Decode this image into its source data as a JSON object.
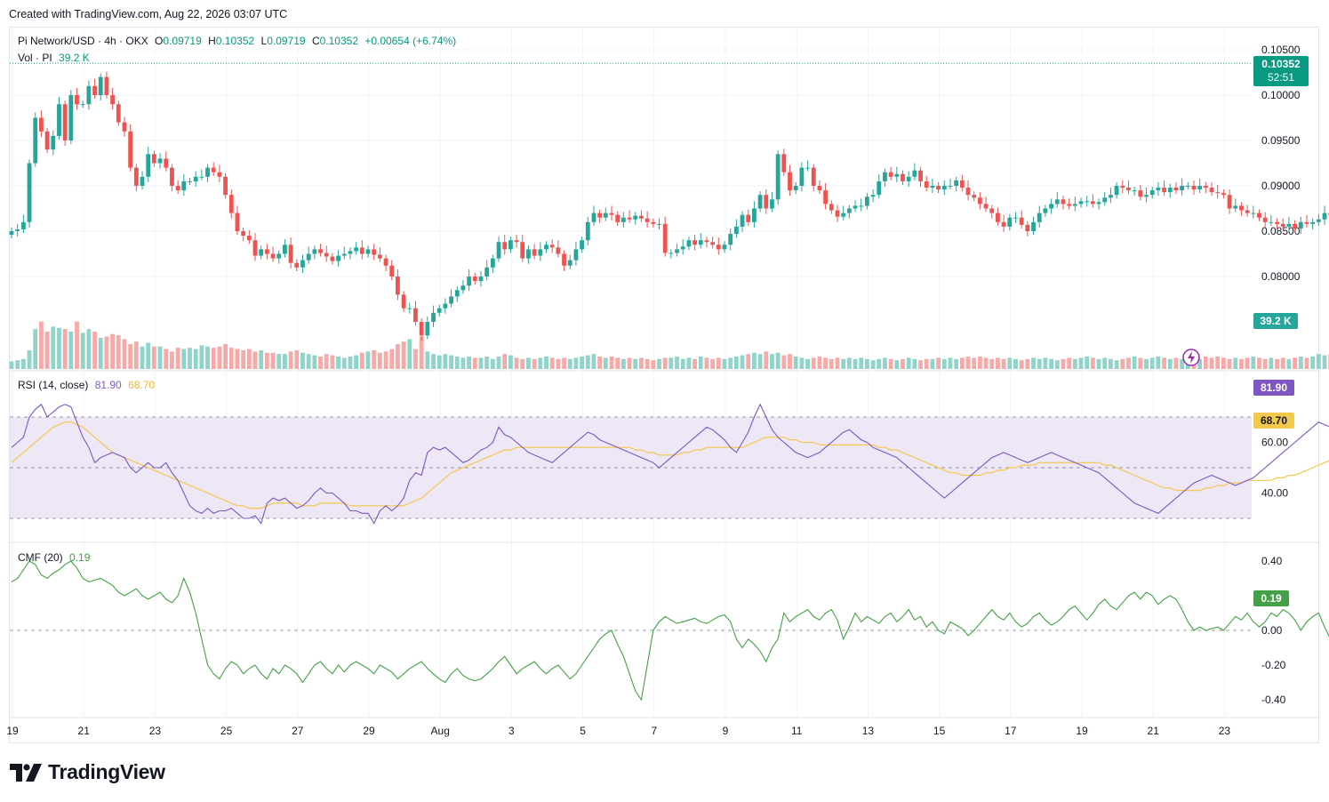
{
  "header": {
    "created": "Created with TradingView.com, Aug 22, 2026 03:07 UTC"
  },
  "legend": {
    "symbol": "Pi Network/USD · 4h · OKX",
    "o_label": "O",
    "o": "0.09719",
    "h_label": "H",
    "h": "0.10352",
    "l_label": "L",
    "l": "0.09719",
    "c_label": "C",
    "c": "0.10352",
    "change": "+0.00654 (+6.74%)",
    "vol_label": "Vol · PI",
    "vol": "39.2 K",
    "rsi_label": "RSI (14, close)",
    "rsi": "81.90",
    "rsi_ma": "68.70",
    "cmf_label": "CMF (20)",
    "cmf": "0.19"
  },
  "tags": {
    "price": "0.10352",
    "countdown": "52:51",
    "volume": "39.2 K",
    "rsi": "81.90",
    "rsi_ma": "68.70",
    "cmf": "0.19"
  },
  "brand": {
    "name": "TradingView"
  },
  "colors": {
    "up": "#26a69a",
    "down": "#ef5350",
    "vol_up": "#8fd3c9",
    "vol_down": "#f7a9a7",
    "rsi": "#7e57c2",
    "rsi_ma": "#f2c94c",
    "rsi_band": "#ede7f6",
    "cmf": "#43a047",
    "grid": "#f0f3fa",
    "text": "#131722"
  },
  "chart_data": [
    {
      "type": "candlestick",
      "title": "Pi Network/USD · 4h · OKX",
      "x_ticks": [
        "19",
        "21",
        "23",
        "25",
        "27",
        "29",
        "Aug",
        "3",
        "5",
        "7",
        "9",
        "11",
        "13",
        "15",
        "17",
        "19",
        "21",
        "23"
      ],
      "y_ticks": [
        "0.10500",
        "0.10000",
        "0.09500",
        "0.09000",
        "0.08500",
        "0.08000"
      ],
      "ylim": [
        0.0772,
        0.1055
      ],
      "bars_per_day": 6,
      "last": {
        "o": 0.09719,
        "h": 0.10352,
        "l": 0.09719,
        "c": 0.10352
      },
      "close": [
        0.085,
        0.0852,
        0.086,
        0.0925,
        0.0975,
        0.096,
        0.094,
        0.0955,
        0.099,
        0.095,
        0.1,
        0.099,
        0.099,
        0.101,
        0.1,
        0.102,
        0.1,
        0.099,
        0.097,
        0.096,
        0.092,
        0.09,
        0.091,
        0.0935,
        0.0925,
        0.093,
        0.092,
        0.09,
        0.0895,
        0.0905,
        0.0905,
        0.091,
        0.091,
        0.092,
        0.0915,
        0.091,
        0.089,
        0.087,
        0.085,
        0.0845,
        0.084,
        0.0823,
        0.083,
        0.0825,
        0.082,
        0.0825,
        0.0835,
        0.0815,
        0.081,
        0.0818,
        0.0825,
        0.083,
        0.0826,
        0.0822,
        0.0817,
        0.0823,
        0.0825,
        0.0828,
        0.0832,
        0.0825,
        0.083,
        0.0824,
        0.082,
        0.0812,
        0.08,
        0.078,
        0.0765,
        0.0765,
        0.075,
        0.0735,
        0.075,
        0.076,
        0.0765,
        0.077,
        0.0778,
        0.0785,
        0.079,
        0.08,
        0.0795,
        0.08,
        0.081,
        0.082,
        0.0838,
        0.083,
        0.084,
        0.0838,
        0.082,
        0.083,
        0.0823,
        0.083,
        0.0835,
        0.0832,
        0.0825,
        0.0812,
        0.0818,
        0.083,
        0.084,
        0.086,
        0.087,
        0.0865,
        0.087,
        0.0868,
        0.086,
        0.0865,
        0.0863,
        0.0867,
        0.0864,
        0.086,
        0.0858,
        0.0858,
        0.0826,
        0.0826,
        0.083,
        0.0833,
        0.084,
        0.0835,
        0.084,
        0.0838,
        0.0835,
        0.083,
        0.0835,
        0.0847,
        0.0855,
        0.0868,
        0.086,
        0.0875,
        0.089,
        0.0875,
        0.0885,
        0.0935,
        0.0915,
        0.0895,
        0.09,
        0.092,
        0.092,
        0.09,
        0.0895,
        0.088,
        0.0873,
        0.0866,
        0.087,
        0.0875,
        0.0878,
        0.0878,
        0.0888,
        0.089,
        0.0905,
        0.0915,
        0.091,
        0.0913,
        0.0905,
        0.091,
        0.0917,
        0.0905,
        0.0898,
        0.09,
        0.0896,
        0.09,
        0.09,
        0.0906,
        0.0898,
        0.089,
        0.0887,
        0.088,
        0.0875,
        0.087,
        0.086,
        0.0855,
        0.0865,
        0.0865,
        0.0857,
        0.085,
        0.086,
        0.087,
        0.0875,
        0.088,
        0.0885,
        0.088,
        0.0878,
        0.088,
        0.0883,
        0.0883,
        0.088,
        0.0882,
        0.0887,
        0.089,
        0.09,
        0.0898,
        0.0895,
        0.0895,
        0.0888,
        0.089,
        0.0895,
        0.0898,
        0.0893,
        0.0898,
        0.0895,
        0.09,
        0.09,
        0.0896,
        0.09,
        0.0898,
        0.0893,
        0.0892,
        0.089,
        0.0875,
        0.0878,
        0.0873,
        0.087,
        0.087,
        0.0865,
        0.086,
        0.086,
        0.0858,
        0.0855,
        0.0858,
        0.0853,
        0.086,
        0.0858,
        0.086,
        0.0863,
        0.087,
        0.0868,
        0.087,
        0.0865,
        0.0868,
        0.0863,
        0.0865,
        0.0868,
        0.087,
        0.0873,
        0.0866,
        0.0867,
        0.0866,
        0.0864,
        0.0863,
        0.086,
        0.0865,
        0.0868,
        0.088,
        0.0885,
        0.09,
        0.089,
        0.088,
        0.089,
        0.09,
        0.0895,
        0.0905,
        0.091,
        0.0905,
        0.091,
        0.0918,
        0.0922,
        0.093,
        0.094,
        0.095,
        0.0948,
        0.093,
        0.0945,
        0.0972,
        0.1035
      ]
    },
    {
      "type": "bar",
      "name": "Vol · PI",
      "last": "39.2 K",
      "values": [
        6,
        7,
        8,
        15,
        32,
        38,
        30,
        34,
        33,
        32,
        30,
        38,
        29,
        32,
        30,
        25,
        26,
        28,
        27,
        24,
        20,
        22,
        18,
        21,
        18,
        18,
        16,
        14,
        17,
        16,
        17,
        16,
        19,
        18,
        17,
        18,
        20,
        17,
        16,
        15,
        16,
        14,
        15,
        13,
        13,
        12,
        12,
        14,
        15,
        13,
        12,
        11,
        10,
        12,
        11,
        10,
        9,
        10,
        11,
        13,
        14,
        15,
        13,
        14,
        16,
        20,
        22,
        24,
        16,
        26,
        14,
        12,
        11,
        12,
        11,
        10,
        9,
        10,
        9,
        9,
        10,
        8,
        10,
        12,
        11,
        9,
        8,
        9,
        8,
        9,
        10,
        9,
        8,
        9,
        8,
        9,
        10,
        11,
        12,
        10,
        9,
        10,
        9,
        8,
        9,
        8,
        9,
        8,
        7,
        8,
        9,
        9,
        10,
        8,
        9,
        8,
        10,
        9,
        8,
        9,
        8,
        9,
        10,
        11,
        12,
        13,
        12,
        14,
        12,
        13,
        11,
        12,
        10,
        9,
        8,
        9,
        10,
        9,
        8,
        9,
        8,
        9,
        8,
        9,
        8,
        7,
        8,
        9,
        8,
        7,
        8,
        9,
        8,
        7,
        8,
        8,
        9,
        8,
        9,
        8,
        9,
        10,
        9,
        10,
        9,
        8,
        9,
        8,
        9,
        8,
        7,
        8,
        9,
        8,
        9,
        8,
        7,
        8,
        9,
        8,
        9,
        10,
        9,
        8,
        9,
        8,
        7,
        8,
        9,
        10,
        9,
        8,
        9,
        10,
        9,
        8,
        9,
        8,
        10,
        9,
        8,
        10,
        9,
        10,
        9,
        8,
        9,
        8,
        9,
        10,
        9,
        8,
        9,
        8,
        9,
        8,
        9,
        10,
        9,
        10,
        12,
        11,
        12,
        11,
        10,
        9,
        10,
        9,
        10,
        11,
        12,
        11,
        10,
        9,
        10,
        11,
        10,
        11,
        12,
        13,
        15,
        16,
        18,
        17,
        16,
        15,
        17,
        18,
        20,
        18,
        22,
        24,
        26,
        25,
        24,
        30,
        39.2
      ]
    },
    {
      "type": "line",
      "name": "RSI (14, close)",
      "ylim": [
        15,
        93
      ],
      "y_ticks": [
        "60.00",
        "40.00"
      ],
      "bands": [
        30,
        50,
        70
      ],
      "last": 81.9,
      "ma_last": 68.7,
      "values": [
        58,
        60,
        62,
        70,
        73,
        75,
        70,
        72,
        74,
        75,
        74,
        68,
        62,
        58,
        52,
        54,
        55,
        56,
        55,
        54,
        50,
        48,
        50,
        52,
        50,
        50,
        52,
        48,
        45,
        40,
        35,
        33,
        32,
        34,
        32,
        33,
        33,
        34,
        32,
        30,
        30,
        31,
        28,
        36,
        38,
        37,
        38,
        36,
        34,
        35,
        37,
        40,
        42,
        40,
        40,
        38,
        36,
        33,
        33,
        32,
        32,
        28,
        33,
        35,
        33,
        35,
        38,
        45,
        48,
        47,
        56,
        58,
        57,
        58,
        56,
        54,
        52,
        53,
        55,
        57,
        58,
        60,
        66,
        63,
        62,
        60,
        58,
        56,
        55,
        54,
        53,
        52,
        54,
        56,
        58,
        60,
        62,
        64,
        63,
        61,
        60,
        59,
        58,
        57,
        56,
        55,
        54,
        53,
        52,
        50,
        52,
        54,
        56,
        58,
        60,
        62,
        64,
        66,
        65,
        63,
        61,
        58,
        56,
        60,
        64,
        70,
        75,
        70,
        65,
        62,
        60,
        58,
        56,
        55,
        54,
        55,
        56,
        58,
        60,
        62,
        64,
        65,
        63,
        61,
        60,
        58,
        57,
        56,
        55,
        54,
        52,
        50,
        48,
        46,
        44,
        42,
        40,
        38,
        40,
        42,
        44,
        46,
        48,
        50,
        52,
        54,
        55,
        56,
        55,
        54,
        53,
        52,
        53,
        54,
        55,
        56,
        55,
        54,
        53,
        52,
        51,
        50,
        49,
        48,
        46,
        44,
        42,
        40,
        38,
        36,
        35,
        34,
        33,
        32,
        34,
        36,
        38,
        40,
        42,
        44,
        45,
        46,
        47,
        46,
        45,
        44,
        43,
        44,
        45,
        46,
        48,
        50,
        52,
        54,
        56,
        58,
        60,
        62,
        64,
        66,
        68,
        67,
        66,
        65,
        66,
        68,
        70,
        72,
        74,
        76,
        75,
        74,
        73,
        72,
        74,
        76,
        78,
        80,
        78,
        76,
        75,
        74,
        76,
        78,
        77,
        76,
        74,
        76,
        78,
        80,
        82,
        81.9
      ],
      "ma_values": [
        52,
        54,
        56,
        58,
        60,
        62,
        64,
        66,
        67,
        68,
        68,
        67,
        66,
        64,
        62,
        60,
        58,
        56,
        55,
        54,
        53,
        52,
        51,
        50,
        49,
        48,
        47,
        46,
        45,
        44,
        43,
        42,
        41,
        40,
        39,
        38,
        37,
        36,
        35,
        35,
        34,
        34,
        34,
        35,
        36,
        36,
        36,
        36,
        36,
        35,
        35,
        35,
        36,
        36,
        36,
        36,
        36,
        35,
        35,
        35,
        35,
        35,
        35,
        35,
        35,
        35,
        35,
        36,
        37,
        38,
        40,
        42,
        44,
        46,
        48,
        49,
        50,
        51,
        52,
        53,
        54,
        55,
        56,
        57,
        57,
        58,
        58,
        58,
        58,
        58,
        58,
        58,
        58,
        58,
        58,
        58,
        58,
        58,
        58,
        58,
        58,
        58,
        58,
        58,
        58,
        57,
        57,
        56,
        56,
        55,
        55,
        55,
        55,
        56,
        56,
        57,
        57,
        58,
        58,
        58,
        58,
        58,
        58,
        58,
        59,
        60,
        61,
        62,
        62,
        62,
        62,
        61,
        61,
        60,
        60,
        60,
        59,
        59,
        59,
        59,
        59,
        59,
        59,
        59,
        59,
        59,
        58,
        58,
        57,
        57,
        56,
        55,
        54,
        53,
        52,
        51,
        50,
        49,
        48,
        48,
        47,
        47,
        47,
        47,
        48,
        48,
        49,
        49,
        50,
        50,
        51,
        51,
        51,
        52,
        52,
        52,
        52,
        52,
        52,
        52,
        52,
        52,
        52,
        52,
        51,
        51,
        50,
        49,
        48,
        47,
        46,
        45,
        44,
        43,
        42,
        42,
        41,
        41,
        41,
        41,
        41,
        42,
        42,
        43,
        43,
        44,
        44,
        44,
        45,
        45,
        45,
        45,
        45,
        46,
        46,
        47,
        47,
        48,
        49,
        50,
        51,
        52,
        53,
        54,
        55,
        56,
        57,
        58,
        59,
        60,
        61,
        62,
        63,
        63,
        64,
        64,
        65,
        65,
        66,
        66,
        67,
        67,
        67,
        68,
        68,
        68,
        68,
        68,
        68,
        68,
        68,
        68,
        68,
        68,
        68.7
      ]
    },
    {
      "type": "line",
      "name": "CMF (20)",
      "ylim": [
        -0.46,
        0.46
      ],
      "y_ticks": [
        "0.40",
        "0.00",
        "-0.20",
        "-0.40"
      ],
      "last": 0.19,
      "values": [
        0.28,
        0.3,
        0.35,
        0.4,
        0.38,
        0.32,
        0.3,
        0.33,
        0.35,
        0.38,
        0.4,
        0.36,
        0.3,
        0.28,
        0.29,
        0.3,
        0.28,
        0.26,
        0.22,
        0.2,
        0.22,
        0.24,
        0.2,
        0.18,
        0.2,
        0.22,
        0.18,
        0.16,
        0.2,
        0.3,
        0.22,
        0.1,
        -0.05,
        -0.2,
        -0.25,
        -0.28,
        -0.22,
        -0.18,
        -0.2,
        -0.25,
        -0.22,
        -0.2,
        -0.25,
        -0.28,
        -0.22,
        -0.25,
        -0.2,
        -0.22,
        -0.25,
        -0.3,
        -0.25,
        -0.2,
        -0.18,
        -0.22,
        -0.25,
        -0.2,
        -0.24,
        -0.2,
        -0.18,
        -0.2,
        -0.22,
        -0.25,
        -0.2,
        -0.22,
        -0.24,
        -0.28,
        -0.25,
        -0.22,
        -0.2,
        -0.18,
        -0.22,
        -0.25,
        -0.28,
        -0.3,
        -0.25,
        -0.22,
        -0.26,
        -0.28,
        -0.29,
        -0.28,
        -0.25,
        -0.22,
        -0.18,
        -0.15,
        -0.2,
        -0.25,
        -0.22,
        -0.2,
        -0.18,
        -0.22,
        -0.25,
        -0.22,
        -0.2,
        -0.24,
        -0.28,
        -0.25,
        -0.2,
        -0.15,
        -0.1,
        -0.05,
        -0.02,
        0.0,
        -0.08,
        -0.15,
        -0.25,
        -0.35,
        -0.4,
        -0.2,
        0.0,
        0.05,
        0.08,
        0.06,
        0.04,
        0.05,
        0.06,
        0.07,
        0.05,
        0.04,
        0.06,
        0.08,
        0.09,
        0.05,
        -0.05,
        -0.1,
        -0.05,
        -0.08,
        -0.12,
        -0.18,
        -0.1,
        -0.05,
        0.1,
        0.05,
        0.08,
        0.1,
        0.12,
        0.08,
        0.06,
        0.1,
        0.12,
        0.06,
        -0.05,
        0.02,
        0.1,
        0.05,
        0.08,
        0.06,
        0.04,
        0.08,
        0.1,
        0.05,
        0.08,
        0.12,
        0.06,
        0.08,
        0.02,
        0.05,
        0.0,
        -0.02,
        0.05,
        0.03,
        0.01,
        -0.03,
        0.0,
        0.04,
        0.08,
        0.12,
        0.08,
        0.06,
        0.1,
        0.05,
        0.02,
        0.04,
        0.08,
        0.1,
        0.06,
        0.03,
        0.05,
        0.08,
        0.12,
        0.14,
        0.1,
        0.06,
        0.1,
        0.15,
        0.18,
        0.14,
        0.12,
        0.16,
        0.2,
        0.22,
        0.18,
        0.22,
        0.2,
        0.15,
        0.18,
        0.2,
        0.18,
        0.12,
        0.05,
        0.0,
        0.02,
        0.0,
        0.01,
        0.02,
        0.0,
        0.04,
        0.08,
        0.06,
        0.1,
        0.05,
        0.02,
        0.05,
        0.1,
        0.08,
        0.12,
        0.1,
        0.06,
        0.0,
        0.05,
        0.08,
        0.1,
        0.02,
        -0.05,
        0.0,
        0.05,
        0.02,
        0.0,
        0.03,
        0.08,
        0.05,
        0.0,
        0.02,
        0.05,
        0.0,
        0.1,
        0.2,
        0.22,
        0.25,
        0.3,
        0.32,
        0.28,
        0.3,
        0.35,
        0.38,
        0.36,
        0.32,
        0.28,
        0.22,
        0.18,
        0.12,
        0.2,
        0.22,
        0.18,
        0.14,
        0.2,
        0.22,
        0.18,
        0.15,
        0.12,
        0.15,
        0.14,
        0.18,
        0.15,
        0.1,
        0.05,
        -0.1,
        -0.05,
        0.05,
        0.19
      ]
    }
  ]
}
